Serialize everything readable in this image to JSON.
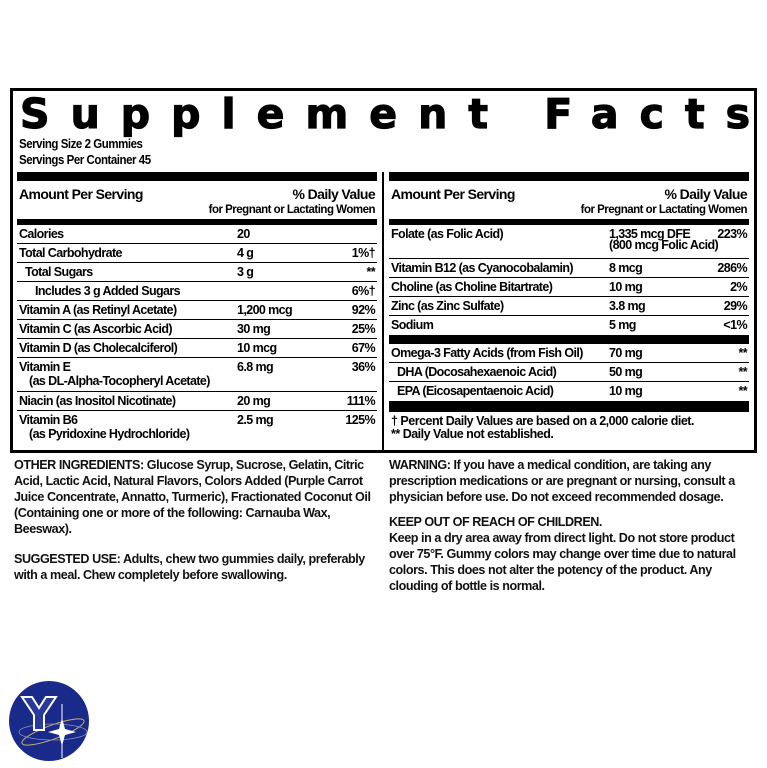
{
  "title": "Supplement Facts",
  "serving_size": "Serving Size  2 Gummies",
  "servings_per_container": "Servings Per Container  45",
  "header": {
    "amount": "Amount Per Serving",
    "dv": "% Daily Value",
    "dv_sub": "for Pregnant or Lactating Women"
  },
  "left_rows": [
    {
      "name": "Calories",
      "amount": "20",
      "dv": ""
    },
    {
      "name": "Total Carbohydrate",
      "amount": "4 g",
      "dv": "1%†"
    },
    {
      "name": "Total Sugars",
      "amount": "3 g",
      "dv": "**"
    },
    {
      "name": "Includes 3 g Added Sugars",
      "amount": "",
      "dv": "6%†"
    },
    {
      "name": "Vitamin A (as Retinyl Acetate)",
      "amount": "1,200 mcg",
      "dv": "92%"
    },
    {
      "name": "Vitamin C (as Ascorbic Acid)",
      "amount": "30 mg",
      "dv": "25%"
    },
    {
      "name": "Vitamin D (as Cholecalciferol)",
      "amount": "10 mcg",
      "dv": "67%"
    },
    {
      "name": "Vitamin E",
      "name2": "(as DL-Alpha-Tocopheryl Acetate)",
      "amount": "6.8 mg",
      "dv": "36%"
    },
    {
      "name": "Niacin (as Inositol Nicotinate)",
      "amount": "20 mg",
      "dv": "111%"
    },
    {
      "name": "Vitamin B6",
      "name2": "(as Pyridoxine Hydrochloride)",
      "amount": "2.5 mg",
      "dv": "125%"
    }
  ],
  "right_rows": [
    {
      "name": "Folate (as Folic Acid)",
      "amount": "1,335 mcg DFE",
      "amount2": "(800 mcg Folic Acid)",
      "dv": "223%"
    },
    {
      "name": "Vitamin B12 (as Cyanocobalamin)",
      "amount": "8 mcg",
      "dv": "286%"
    },
    {
      "name": "Choline (as Choline Bitartrate)",
      "amount": "10 mg",
      "dv": "2%"
    },
    {
      "name": "Zinc (as Zinc Sulfate)",
      "amount": "3.8 mg",
      "dv": "29%"
    },
    {
      "name": "Sodium",
      "amount": "5 mg",
      "dv": "<1%"
    }
  ],
  "right_rows2": [
    {
      "name": "Omega-3 Fatty Acids (from Fish Oil)",
      "amount": "70 mg",
      "dv": "**"
    },
    {
      "name": "DHA (Docosahexaenoic Acid)",
      "amount": "50 mg",
      "dv": "**"
    },
    {
      "name": "EPA (Eicosapentaenoic Acid)",
      "amount": "10 mg",
      "dv": "**"
    }
  ],
  "footnotes": [
    "† Percent Daily Values are based on a 2,000 calorie diet.",
    "** Daily Value not established."
  ],
  "other_ingredients": {
    "label": "OTHER INGREDIENTS:",
    "text": " Glucose Syrup, Sucrose, Gelatin, Citric Acid, Lactic Acid, Natural Flavors, Colors Added (Purple Carrot Juice Concentrate, Annatto, Turmeric), Fractionated Coconut Oil (Containing one or more of the following: Carnauba Wax, Beeswax)."
  },
  "suggested_use": {
    "label": "SUGGESTED USE:",
    "text": " Adults, chew two gummies daily, preferably with a meal. Chew completely before swallowing."
  },
  "warning": {
    "label": "WARNING:",
    "text": " If you have a medical condition, are taking any prescription medications or are pregnant or nursing, consult a physician before use. Do not exceed recommended dosage."
  },
  "keep_out": {
    "label": "KEEP OUT OF REACH OF CHILDREN.",
    "text": "Keep in a dry area away from direct light. Do not store product over 75°F. Gummy colors may change over time due to natural colors. This does not alter the potency of the product. Any clouding of bottle is normal."
  },
  "logo": {
    "icon": "brand-logo-y-star",
    "color": "#1a2a8a"
  }
}
